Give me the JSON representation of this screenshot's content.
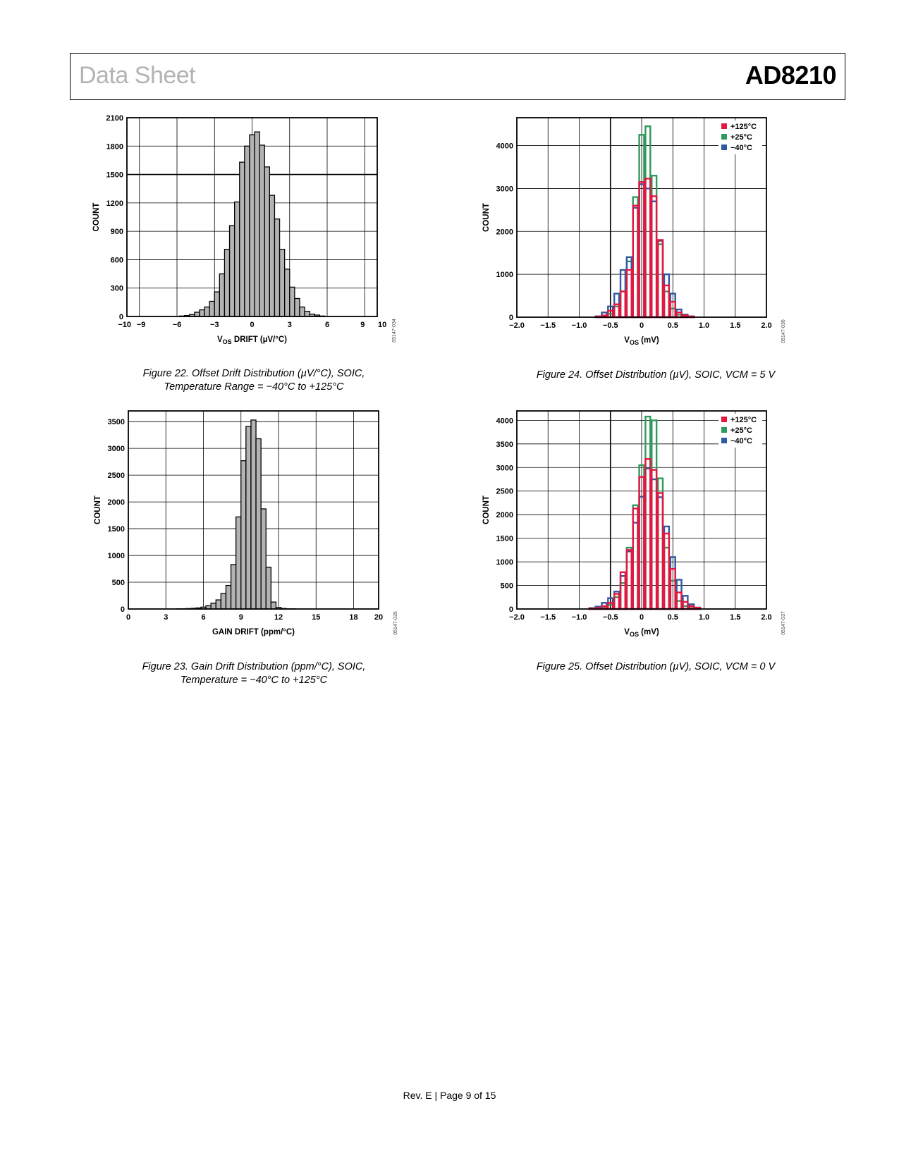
{
  "header": {
    "left": "Data Sheet",
    "right": "AD8210"
  },
  "footer": {
    "text": "Rev. E | Page 9 of 15"
  },
  "figures": [
    {
      "id": "fig22",
      "caption_line1": "Figure 22. Offset Drift Distribution (µV/°C), SOIC,",
      "caption_line2": "Temperature Range = −40°C to +125°C",
      "code": "05147-034",
      "chart_data": {
        "type": "bar",
        "xlabel_main": "V",
        "xlabel_sub": "OS",
        "xlabel_rest": " DRIFT (µV/°C)",
        "ylabel": "COUNT",
        "xlim": [
          -10,
          10
        ],
        "ylim": [
          0,
          2100
        ],
        "xticks": [
          -10,
          -9,
          -6,
          -3,
          0,
          3,
          6,
          9,
          10
        ],
        "xtick_labels": [
          "−10",
          "−9",
          "−6",
          "−3",
          "0",
          "3",
          "6",
          "9",
          "10"
        ],
        "yticks": [
          0,
          300,
          600,
          900,
          1200,
          1500,
          1800,
          2100
        ],
        "ytick_labels": [
          "0",
          "300",
          "600",
          "900",
          "1200",
          "1500",
          "1800",
          "2100"
        ],
        "grid": true,
        "bar_color": "#b3b3b3",
        "bin_width": 0.4,
        "x": [
          -5.6,
          -5.2,
          -4.8,
          -4.4,
          -4.0,
          -3.6,
          -3.2,
          -2.8,
          -2.4,
          -2.0,
          -1.6,
          -1.2,
          -0.8,
          -0.4,
          0.0,
          0.4,
          0.8,
          1.2,
          1.6,
          2.0,
          2.4,
          2.8,
          3.2,
          3.6,
          4.0,
          4.4,
          4.8,
          5.2,
          5.6
        ],
        "values": [
          5,
          10,
          20,
          45,
          70,
          100,
          160,
          260,
          450,
          710,
          960,
          1210,
          1630,
          1800,
          1920,
          1950,
          1810,
          1580,
          1280,
          1030,
          710,
          500,
          310,
          190,
          100,
          55,
          25,
          15,
          5
        ]
      }
    },
    {
      "id": "fig23",
      "caption_line1": "Figure 23. Gain Drift Distribution (ppm/°C), SOIC,",
      "caption_line2": "Temperature = −40°C to +125°C",
      "code": "05147-035",
      "chart_data": {
        "type": "bar",
        "xlabel": "GAIN DRIFT (ppm/°C)",
        "ylabel": "COUNT",
        "xlim": [
          0,
          20
        ],
        "ylim": [
          0,
          3700
        ],
        "xticks": [
          0,
          3,
          6,
          9,
          12,
          15,
          18,
          20
        ],
        "xtick_labels": [
          "0",
          "3",
          "6",
          "9",
          "12",
          "15",
          "18",
          "20"
        ],
        "yticks": [
          0,
          500,
          1000,
          1500,
          2000,
          2500,
          3000,
          3500
        ],
        "ytick_labels": [
          "0",
          "500",
          "1000",
          "1500",
          "2000",
          "2500",
          "3000",
          "3500"
        ],
        "grid": true,
        "bar_color": "#b3b3b3",
        "bin_width": 0.4,
        "x": [
          4.0,
          4.4,
          4.8,
          5.2,
          5.6,
          6.0,
          6.4,
          6.8,
          7.2,
          7.6,
          8.0,
          8.4,
          8.8,
          9.2,
          9.6,
          10.0,
          10.4,
          10.8,
          11.2,
          11.6,
          12.0,
          12.4,
          12.8,
          13.2
        ],
        "values": [
          3,
          5,
          8,
          12,
          20,
          35,
          60,
          110,
          170,
          290,
          440,
          830,
          1720,
          2770,
          3410,
          3530,
          3180,
          1870,
          780,
          130,
          30,
          10,
          5,
          3
        ]
      }
    },
    {
      "id": "fig24",
      "caption_line1": "Figure 24. Offset Distribution (µV), SOIC, VCM = 5 V",
      "caption_line2": "",
      "code": "05147-036",
      "chart_data": {
        "type": "histogram-step",
        "xlabel_main": "V",
        "xlabel_sub": "OS",
        "xlabel_rest": " (mV)",
        "ylabel": "COUNT",
        "xlim": [
          -2.0,
          2.0
        ],
        "ylim": [
          0,
          4650
        ],
        "xticks": [
          -2.0,
          -1.5,
          -1.0,
          -0.5,
          0,
          0.5,
          1.0,
          1.5,
          2.0
        ],
        "xtick_labels": [
          "−2.0",
          "−1.5",
          "−1.0",
          "−0.5",
          "0",
          "0.5",
          "1.0",
          "1.5",
          "2.0"
        ],
        "yticks": [
          0,
          1000,
          2000,
          3000,
          4000
        ],
        "ytick_labels": [
          "0",
          "1000",
          "2000",
          "3000",
          "4000"
        ],
        "grid": true,
        "vline": -0.5,
        "legend_position": "top-right",
        "bin_width": 0.1,
        "x": [
          -0.7,
          -0.6,
          -0.5,
          -0.4,
          -0.3,
          -0.2,
          -0.1,
          0.0,
          0.1,
          0.2,
          0.3,
          0.4,
          0.5,
          0.6,
          0.7,
          0.8
        ],
        "series": [
          {
            "name": "+125°C",
            "color": "#e4173f",
            "values": [
              10,
              40,
              150,
              300,
              600,
              1100,
              2600,
              3150,
              3230,
              2820,
              1800,
              740,
              360,
              110,
              40,
              15
            ]
          },
          {
            "name": "+25°C",
            "color": "#2f9a5b",
            "values": [
              5,
              20,
              80,
              250,
              600,
              1300,
              2800,
              4250,
              4450,
              3300,
              1700,
              600,
              200,
              60,
              20,
              5
            ]
          },
          {
            "name": "−40°C",
            "color": "#2e5aa1",
            "values": [
              20,
              110,
              250,
              550,
              1100,
              1400,
              2550,
              3100,
              3000,
              2700,
              1780,
              1000,
              550,
              180,
              60,
              20
            ]
          }
        ]
      }
    },
    {
      "id": "fig25",
      "caption_line1": "Figure 25. Offset Distribution (µV), SOIC, VCM = 0 V",
      "caption_line2": "",
      "code": "05147-037",
      "chart_data": {
        "type": "histogram-step",
        "xlabel_main": "V",
        "xlabel_sub": "OS",
        "xlabel_rest": " (mV)",
        "ylabel": "COUNT",
        "xlim": [
          -2.0,
          2.0
        ],
        "ylim": [
          0,
          4200
        ],
        "xticks": [
          -2.0,
          -1.5,
          -1.0,
          -0.5,
          0,
          0.5,
          1.0,
          1.5,
          2.0
        ],
        "xtick_labels": [
          "−2.0",
          "−1.5",
          "−1.0",
          "−0.5",
          "0",
          "0.5",
          "1.0",
          "1.5",
          "2.0"
        ],
        "yticks": [
          0,
          500,
          1000,
          1500,
          2000,
          2500,
          3000,
          3500,
          4000
        ],
        "ytick_labels": [
          "0",
          "500",
          "1000",
          "1500",
          "2000",
          "2500",
          "3000",
          "3500",
          "4000"
        ],
        "grid": true,
        "vline": -0.5,
        "legend_position": "top-right",
        "bin_width": 0.1,
        "x": [
          -0.8,
          -0.7,
          -0.6,
          -0.5,
          -0.4,
          -0.3,
          -0.2,
          -0.1,
          0.0,
          0.1,
          0.2,
          0.3,
          0.4,
          0.5,
          0.6,
          0.7,
          0.8,
          0.9
        ],
        "series": [
          {
            "name": "+125°C",
            "color": "#e4173f",
            "values": [
              10,
              20,
              60,
              130,
              320,
              780,
              1250,
              2130,
              2800,
              3180,
              2950,
              2460,
              1600,
              850,
              350,
              150,
              60,
              25
            ]
          },
          {
            "name": "+25°C",
            "color": "#2f9a5b",
            "values": [
              5,
              10,
              40,
              90,
              250,
              550,
              1300,
              2200,
              3050,
              4080,
              4000,
              2770,
              1300,
              600,
              170,
              60,
              20,
              5
            ]
          },
          {
            "name": "−40°C",
            "color": "#2e5aa1",
            "values": [
              20,
              50,
              130,
              230,
              370,
              700,
              1220,
              1830,
              2380,
              2980,
              2750,
              2370,
              1750,
              1100,
              620,
              280,
              100,
              30
            ]
          }
        ]
      }
    }
  ]
}
